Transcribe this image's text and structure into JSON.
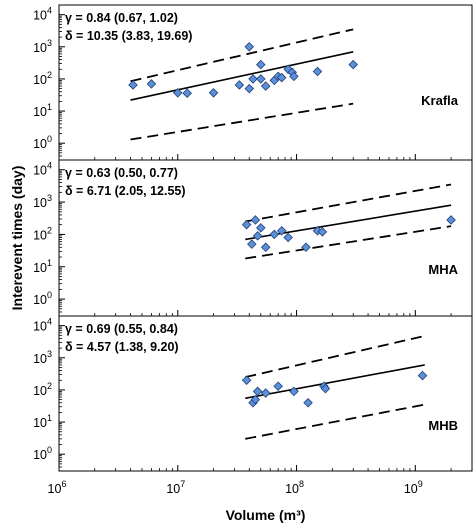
{
  "chart_data": {
    "type": "scatter",
    "xlabel": "Volume (m³)",
    "ylabel": "Interevent times (day)",
    "x_scale": "log",
    "y_scale": "log",
    "xlim": [
      1000000,
      3000000000
    ],
    "ylim": [
      0.3,
      20000
    ],
    "x_ticks": [
      {
        "value": 1000000,
        "base": "10",
        "exp": "6"
      },
      {
        "value": 10000000,
        "base": "10",
        "exp": "7"
      },
      {
        "value": 100000000,
        "base": "10",
        "exp": "8"
      },
      {
        "value": 1000000000,
        "base": "10",
        "exp": "9"
      }
    ],
    "y_ticks": [
      {
        "value": 1,
        "base": "10",
        "exp": "0"
      },
      {
        "value": 10,
        "base": "10",
        "exp": "1"
      },
      {
        "value": 100,
        "base": "10",
        "exp": "2"
      },
      {
        "value": 1000,
        "base": "10",
        "exp": "3"
      },
      {
        "value": 10000,
        "base": "10",
        "exp": "4"
      }
    ],
    "colors": {
      "marker_fill": "#5b8fd6",
      "marker_stroke": "#1f3f7a",
      "line": "#000000"
    },
    "panels": [
      {
        "label": "Krafla",
        "annotation_gamma": "γ = 0.84 (0.67, 1.02)",
        "annotation_delta": "δ = 10.35 (3.83, 19.69)",
        "fit_x": [
          4000000,
          300000000
        ],
        "fit_y": [
          22,
          700
        ],
        "upper_y": [
          85,
          3500
        ],
        "lower_y": [
          1.3,
          17
        ],
        "points": [
          {
            "x": 4200000,
            "y": 65
          },
          {
            "x": 6000000,
            "y": 70
          },
          {
            "x": 10000000,
            "y": 37
          },
          {
            "x": 12000000,
            "y": 36
          },
          {
            "x": 20000000,
            "y": 37
          },
          {
            "x": 33000000,
            "y": 65
          },
          {
            "x": 40000000,
            "y": 1000
          },
          {
            "x": 40000000,
            "y": 50
          },
          {
            "x": 43000000,
            "y": 100
          },
          {
            "x": 50000000,
            "y": 100
          },
          {
            "x": 50000000,
            "y": 280
          },
          {
            "x": 55000000,
            "y": 60
          },
          {
            "x": 65000000,
            "y": 90
          },
          {
            "x": 70000000,
            "y": 120
          },
          {
            "x": 75000000,
            "y": 110
          },
          {
            "x": 85000000,
            "y": 200
          },
          {
            "x": 92000000,
            "y": 160
          },
          {
            "x": 95000000,
            "y": 120
          },
          {
            "x": 150000000,
            "y": 170
          },
          {
            "x": 300000000,
            "y": 280
          }
        ]
      },
      {
        "label": "MHA",
        "annotation_gamma": "γ = 0.63 (0.50, 0.77)",
        "annotation_delta": "δ = 6.71 (2.05, 12.55)",
        "fit_x": [
          37000000,
          2000000000
        ],
        "fit_y": [
          70,
          800
        ],
        "upper_y": [
          250,
          3500
        ],
        "lower_y": [
          18,
          180
        ],
        "points": [
          {
            "x": 38000000,
            "y": 200
          },
          {
            "x": 42000000,
            "y": 50
          },
          {
            "x": 45000000,
            "y": 280
          },
          {
            "x": 47000000,
            "y": 90
          },
          {
            "x": 50000000,
            "y": 160
          },
          {
            "x": 55000000,
            "y": 40
          },
          {
            "x": 65000000,
            "y": 100
          },
          {
            "x": 75000000,
            "y": 130
          },
          {
            "x": 85000000,
            "y": 80
          },
          {
            "x": 120000000,
            "y": 40
          },
          {
            "x": 150000000,
            "y": 130
          },
          {
            "x": 165000000,
            "y": 120
          },
          {
            "x": 2000000000,
            "y": 280
          }
        ]
      },
      {
        "label": "MHB",
        "annotation_gamma": "γ = 0.69 (0.55, 0.84)",
        "annotation_delta": "δ = 4.57 (1.38, 9.20)",
        "fit_x": [
          37000000,
          1200000000
        ],
        "fit_y": [
          55,
          600
        ],
        "upper_y": [
          250,
          4800
        ],
        "lower_y": [
          3,
          35
        ],
        "points": [
          {
            "x": 38000000,
            "y": 200
          },
          {
            "x": 43000000,
            "y": 40
          },
          {
            "x": 45000000,
            "y": 50
          },
          {
            "x": 47000000,
            "y": 90
          },
          {
            "x": 55000000,
            "y": 80
          },
          {
            "x": 70000000,
            "y": 130
          },
          {
            "x": 95000000,
            "y": 90
          },
          {
            "x": 125000000,
            "y": 40
          },
          {
            "x": 170000000,
            "y": 130
          },
          {
            "x": 175000000,
            "y": 110
          },
          {
            "x": 1150000000,
            "y": 280
          }
        ]
      }
    ]
  }
}
